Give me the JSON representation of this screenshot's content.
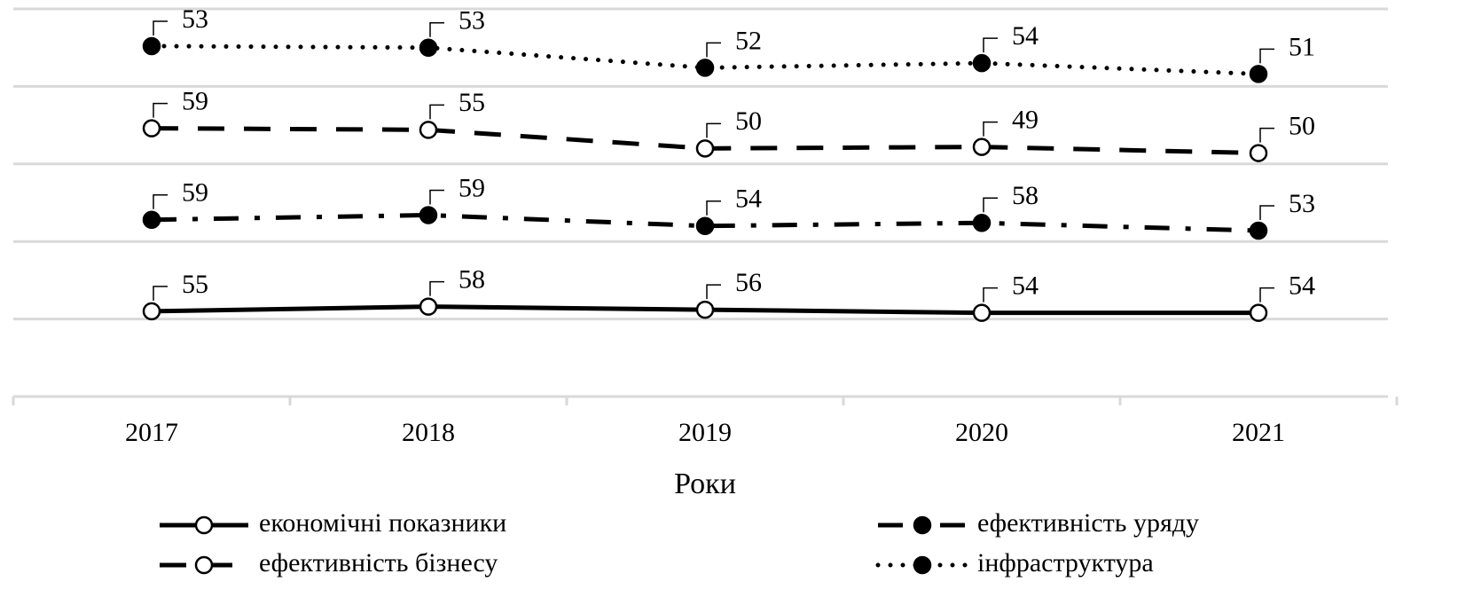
{
  "chart_data": {
    "type": "line",
    "stacked": true,
    "xlabel": "Роки",
    "categories": [
      "2017",
      "2018",
      "2019",
      "2020",
      "2021"
    ],
    "series": [
      {
        "name": "економічні показники",
        "color": "#000000",
        "line_style": "solid",
        "marker_fill": "open",
        "values": [
          55,
          58,
          56,
          54,
          54
        ]
      },
      {
        "name": "ефективність уряду",
        "color": "#000000",
        "line_style": "dashdot",
        "marker_fill": "filled",
        "values": [
          59,
          59,
          54,
          58,
          53
        ]
      },
      {
        "name": "ефективність бізнесу",
        "color": "#000000",
        "line_style": "dashed",
        "marker_fill": "open",
        "values": [
          59,
          55,
          50,
          49,
          50
        ]
      },
      {
        "name": "інфраструктура",
        "color": "#000000",
        "line_style": "dotted",
        "marker_fill": "filled",
        "values": [
          53,
          53,
          52,
          54,
          51
        ]
      }
    ],
    "ylim": [
      0,
      250
    ],
    "yticks": [
      0,
      50,
      100,
      150,
      200,
      250
    ],
    "ytick_labels": false,
    "grid": true,
    "legend": "bottom"
  }
}
